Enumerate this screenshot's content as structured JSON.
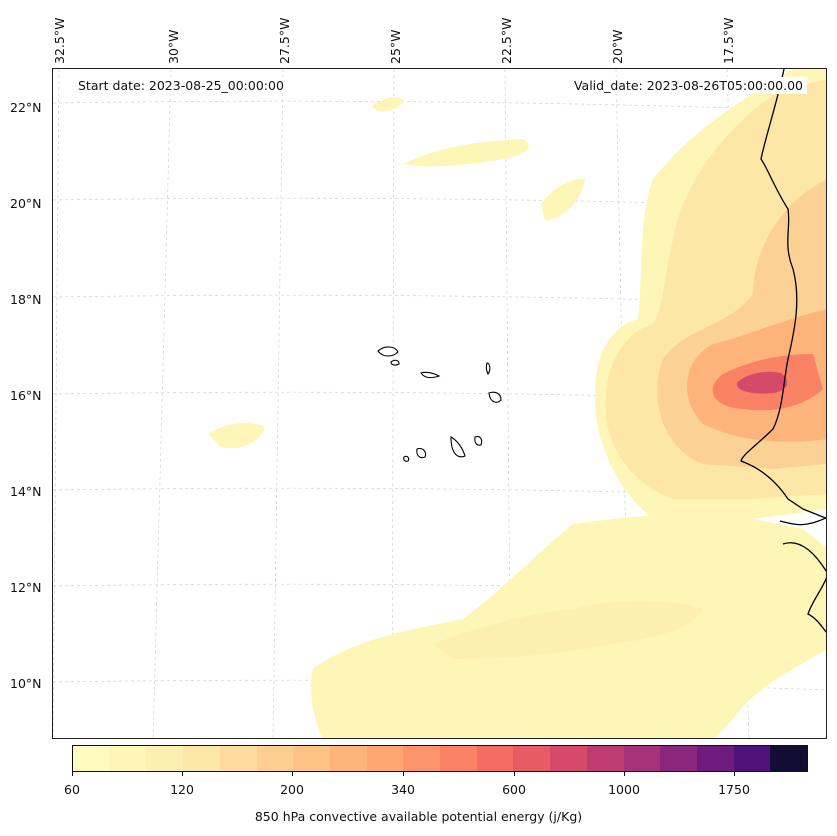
{
  "map": {
    "start_date": "Start date: 2023-08-25_00:00:00",
    "valid_date": "Valid_date: 2023-08-26T05:00:00.00",
    "longitude_labels": [
      "32.5°W",
      "30°W",
      "27.5°W",
      "25°W",
      "22.5°W",
      "20°W",
      "17.5°W"
    ],
    "latitude_labels": [
      "22°N",
      "20°N",
      "18°N",
      "16°N",
      "14°N",
      "12°N",
      "10°N"
    ],
    "variable": "850 hPa convective available potential energy",
    "units": "j/Kg",
    "colorbar": {
      "title": "850 hPa convective available potential energy (j/Kg)",
      "tick_labels": [
        "60",
        "120",
        "200",
        "340",
        "600",
        "1000",
        "1750"
      ],
      "colors": [
        "#fefbbf",
        "#fdf6b7",
        "#fcefb0",
        "#fde7a7",
        "#fcdb9c",
        "#fccf90",
        "#fcc286",
        "#fcb47b",
        "#fca672",
        "#fb946a",
        "#f98264",
        "#f26e62",
        "#e65b65",
        "#d54a6b",
        "#bf3c73",
        "#a63279",
        "#8b267d",
        "#6f1a7d",
        "#4f1278",
        "#120d32"
      ]
    }
  }
}
